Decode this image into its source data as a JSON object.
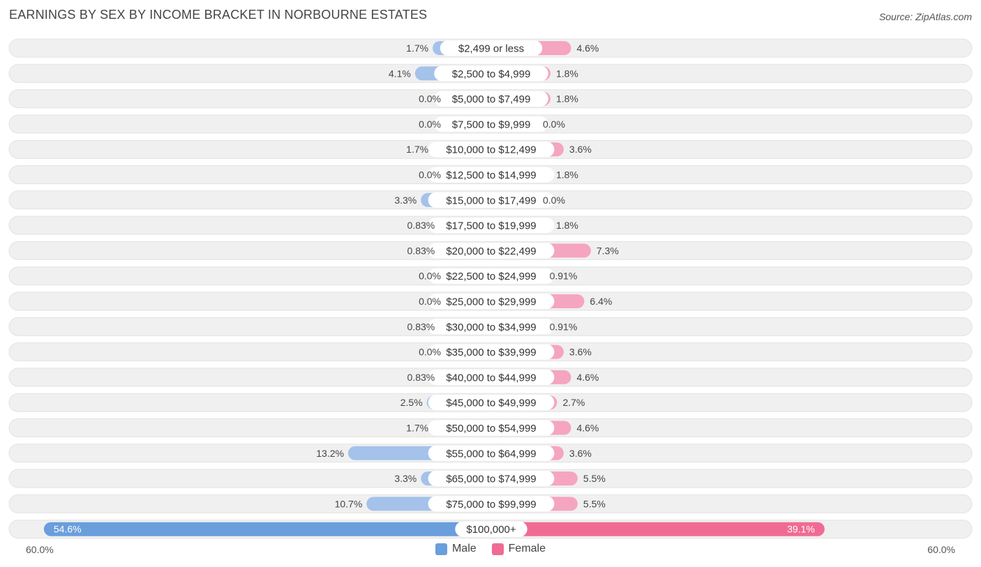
{
  "title": "EARNINGS BY SEX BY INCOME BRACKET IN NORBOURNE ESTATES",
  "source": "Source: ZipAtlas.com",
  "colors": {
    "male": "#a4c2ea",
    "male_strong": "#6a9edc",
    "female": "#f5a5bf",
    "female_strong": "#f06b94",
    "row_bg": "#f0f0f0",
    "label_text": "#444444"
  },
  "chart_data": {
    "type": "bar",
    "orientation": "diverging-horizontal",
    "title": "EARNINGS BY SEX BY INCOME BRACKET IN NORBOURNE ESTATES",
    "axis_max": 60.0,
    "axis_left_label": "60.0%",
    "axis_right_label": "60.0%",
    "categories": [
      "$2,499 or less",
      "$2,500 to $4,999",
      "$5,000 to $7,499",
      "$7,500 to $9,999",
      "$10,000 to $12,499",
      "$12,500 to $14,999",
      "$15,000 to $17,499",
      "$17,500 to $19,999",
      "$20,000 to $22,499",
      "$22,500 to $24,999",
      "$25,000 to $29,999",
      "$30,000 to $34,999",
      "$35,000 to $39,999",
      "$40,000 to $44,999",
      "$45,000 to $49,999",
      "$50,000 to $54,999",
      "$55,000 to $64,999",
      "$65,000 to $74,999",
      "$75,000 to $99,999",
      "$100,000+"
    ],
    "series": [
      {
        "name": "Male",
        "values": [
          1.7,
          4.1,
          0.0,
          0.0,
          1.7,
          0.0,
          3.3,
          0.83,
          0.83,
          0.0,
          0.0,
          0.83,
          0.0,
          0.83,
          2.5,
          1.7,
          13.2,
          3.3,
          10.7,
          54.6
        ],
        "labels": [
          "1.7%",
          "4.1%",
          "0.0%",
          "0.0%",
          "1.7%",
          "0.0%",
          "3.3%",
          "0.83%",
          "0.83%",
          "0.0%",
          "0.0%",
          "0.83%",
          "0.0%",
          "0.83%",
          "2.5%",
          "1.7%",
          "13.2%",
          "3.3%",
          "10.7%",
          "54.6%"
        ]
      },
      {
        "name": "Female",
        "values": [
          4.6,
          1.8,
          1.8,
          0.0,
          3.6,
          1.8,
          0.0,
          1.8,
          7.3,
          0.91,
          6.4,
          0.91,
          3.6,
          4.6,
          2.7,
          4.6,
          3.6,
          5.5,
          5.5,
          39.1
        ],
        "labels": [
          "4.6%",
          "1.8%",
          "1.8%",
          "0.0%",
          "3.6%",
          "1.8%",
          "0.0%",
          "1.8%",
          "7.3%",
          "0.91%",
          "6.4%",
          "0.91%",
          "3.6%",
          "4.6%",
          "2.7%",
          "4.6%",
          "3.6%",
          "5.5%",
          "5.5%",
          "39.1%"
        ]
      }
    ],
    "legend": [
      "Male",
      "Female"
    ],
    "legend_position": "bottom-center"
  }
}
